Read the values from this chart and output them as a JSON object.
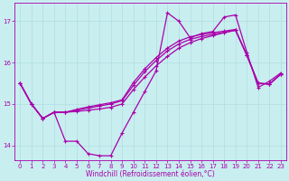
{
  "title": "",
  "xlabel": "Windchill (Refroidissement éolien,°C)",
  "bg_color": "#c8eef0",
  "grid_color": "#b0dde0",
  "line_color": "#aa00aa",
  "xlim": [
    -0.5,
    23.5
  ],
  "ylim": [
    13.65,
    17.45
  ],
  "xticks": [
    0,
    1,
    2,
    3,
    4,
    5,
    6,
    7,
    8,
    9,
    10,
    11,
    12,
    13,
    14,
    15,
    16,
    17,
    18,
    19,
    20,
    21,
    22,
    23
  ],
  "yticks": [
    14,
    15,
    16,
    17
  ],
  "series": [
    [
      15.5,
      15.0,
      14.65,
      14.8,
      14.1,
      14.1,
      13.8,
      13.75,
      13.75,
      14.3,
      14.8,
      15.3,
      15.8,
      17.2,
      17.0,
      16.6,
      16.7,
      16.75,
      17.1,
      17.15,
      16.25,
      15.4,
      15.55,
      15.75
    ],
    [
      15.5,
      15.0,
      14.65,
      14.8,
      14.8,
      14.82,
      14.85,
      14.88,
      14.92,
      15.0,
      15.35,
      15.65,
      15.92,
      16.15,
      16.35,
      16.48,
      16.58,
      16.65,
      16.72,
      16.78,
      16.18,
      15.5,
      15.48,
      15.72
    ],
    [
      15.5,
      15.0,
      14.65,
      14.8,
      14.8,
      14.85,
      14.9,
      14.95,
      15.0,
      15.08,
      15.45,
      15.78,
      16.05,
      16.28,
      16.45,
      16.56,
      16.63,
      16.68,
      16.73,
      16.78,
      16.18,
      15.5,
      15.48,
      15.72
    ],
    [
      15.5,
      15.0,
      14.65,
      14.8,
      14.8,
      14.87,
      14.93,
      14.98,
      15.03,
      15.1,
      15.52,
      15.85,
      16.12,
      16.35,
      16.52,
      16.62,
      16.68,
      16.72,
      16.76,
      16.8,
      16.18,
      15.5,
      15.48,
      15.72
    ]
  ],
  "xlabel_fontsize": 5.5,
  "tick_fontsize": 5,
  "linewidth": 0.9,
  "markersize": 2.5
}
